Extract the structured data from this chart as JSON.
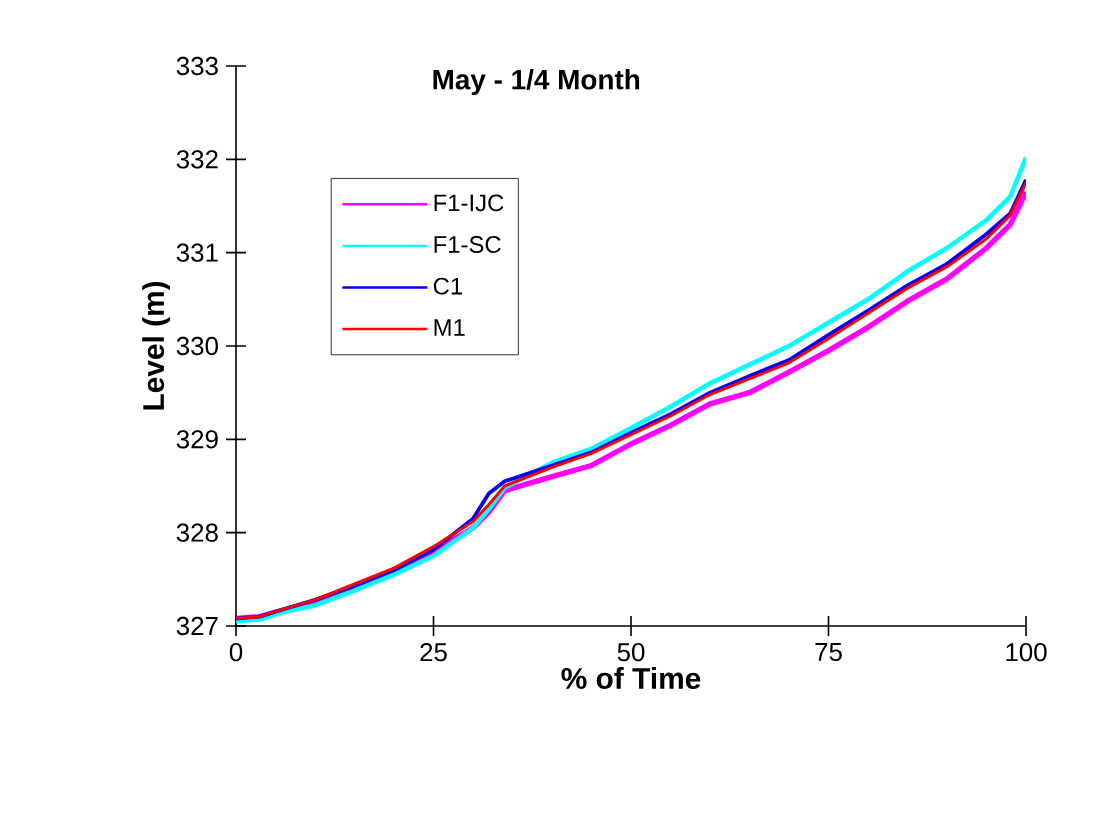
{
  "chart_data": {
    "type": "line",
    "title": "May - 1/4 Month",
    "xlabel": "% of Time",
    "ylabel": "Level (m)",
    "xlim": [
      0,
      100
    ],
    "xticks": [
      0,
      25,
      50,
      75,
      100
    ],
    "ylim": [
      327,
      333
    ],
    "yticks": [
      327,
      328,
      329,
      330,
      331,
      332,
      333
    ],
    "grid": false,
    "legend": "top left",
    "marker": "none",
    "line_style": "solid",
    "x": [
      0,
      3,
      6,
      10,
      15,
      20,
      25,
      30,
      32,
      34,
      40,
      45,
      50,
      55,
      60,
      65,
      70,
      75,
      80,
      85,
      90,
      95,
      98,
      100
    ],
    "series": [
      {
        "name": "F1-IJC",
        "color": "#ff00ff",
        "values": [
          327.08,
          327.1,
          327.17,
          327.26,
          327.42,
          327.6,
          327.8,
          328.05,
          328.22,
          328.45,
          328.6,
          328.72,
          328.95,
          329.15,
          329.38,
          329.5,
          329.72,
          329.95,
          330.2,
          330.48,
          330.72,
          331.05,
          331.3,
          331.65
        ]
      },
      {
        "name": "F1-SC",
        "color": "#00ffff",
        "values": [
          327.05,
          327.07,
          327.15,
          327.22,
          327.38,
          327.55,
          327.75,
          328.05,
          328.25,
          328.48,
          328.75,
          328.9,
          329.12,
          329.35,
          329.6,
          329.8,
          330.0,
          330.25,
          330.5,
          330.8,
          331.05,
          331.35,
          331.6,
          332.02
        ]
      },
      {
        "name": "C1",
        "color": "#0000ff",
        "values": [
          327.08,
          327.1,
          327.18,
          327.28,
          327.43,
          327.6,
          327.82,
          328.15,
          328.42,
          328.55,
          328.72,
          328.86,
          329.07,
          329.27,
          329.5,
          329.68,
          329.85,
          330.12,
          330.38,
          330.65,
          330.88,
          331.2,
          331.42,
          331.78
        ]
      },
      {
        "name": "M1",
        "color": "#ff0000",
        "values": [
          327.08,
          327.1,
          327.18,
          327.28,
          327.45,
          327.62,
          327.85,
          328.12,
          328.3,
          328.5,
          328.7,
          328.85,
          329.05,
          329.25,
          329.48,
          329.65,
          329.82,
          330.08,
          330.35,
          330.62,
          330.85,
          331.15,
          331.4,
          331.75
        ]
      }
    ]
  }
}
